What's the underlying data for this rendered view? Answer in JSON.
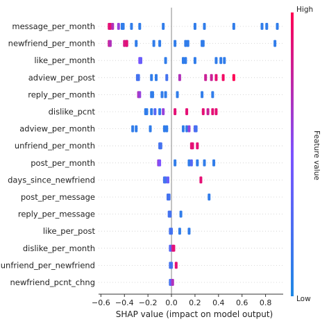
{
  "chart_data": {
    "type": "scatter",
    "title": "",
    "xlabel": "SHAP value (impact on model output)",
    "ylabel": "",
    "xlim": [
      -0.62,
      0.95
    ],
    "xticks": [
      -0.6,
      -0.4,
      -0.2,
      0.0,
      0.2,
      0.4,
      0.6,
      0.8
    ],
    "xtick_labels": [
      "−0.6",
      "−0.4",
      "−0.2",
      "0.0",
      "0.2",
      "0.4",
      "0.6",
      "0.8"
    ],
    "colorbar": {
      "label": "Feature value",
      "high_label": "High",
      "low_label": "Low",
      "low_color": "#1e88e5",
      "high_color": "#ff0052"
    },
    "features": [
      {
        "name": "message_per_month",
        "points": [
          [
            -0.53,
            0.9
          ],
          [
            -0.52,
            0.9
          ],
          [
            -0.5,
            0.7
          ],
          [
            -0.45,
            0.6
          ],
          [
            -0.42,
            0.1
          ],
          [
            -0.41,
            0.1
          ],
          [
            -0.34,
            0.1
          ],
          [
            -0.27,
            0.1
          ],
          [
            -0.07,
            0.1
          ],
          [
            0.2,
            0.1
          ],
          [
            0.28,
            0.1
          ],
          [
            0.53,
            0.1
          ],
          [
            0.77,
            0.1
          ],
          [
            0.81,
            0.1
          ],
          [
            0.9,
            0.1
          ]
        ]
      },
      {
        "name": "newfriend_per_month",
        "points": [
          [
            -0.53,
            0.8
          ],
          [
            -0.52,
            0.7
          ],
          [
            -0.38,
            0.1
          ],
          [
            -0.4,
            0.85
          ],
          [
            -0.38,
            0.9
          ],
          [
            -0.3,
            0.1
          ],
          [
            -0.15,
            0.1
          ],
          [
            -0.1,
            0.1
          ],
          [
            0.03,
            0.1
          ],
          [
            0.12,
            0.1
          ],
          [
            0.14,
            0.1
          ],
          [
            0.26,
            0.1
          ],
          [
            0.27,
            0.1
          ],
          [
            0.88,
            0.1
          ]
        ]
      },
      {
        "name": "like_per_month",
        "points": [
          [
            -0.27,
            0.5
          ],
          [
            -0.26,
            0.4
          ],
          [
            -0.05,
            0.1
          ],
          [
            0.1,
            0.1
          ],
          [
            0.12,
            0.1
          ],
          [
            0.2,
            0.1
          ],
          [
            0.38,
            0.1
          ],
          [
            0.42,
            0.1
          ],
          [
            0.45,
            0.1
          ]
        ]
      },
      {
        "name": "adview_per_post",
        "points": [
          [
            -0.29,
            0.2
          ],
          [
            -0.28,
            0.2
          ],
          [
            -0.17,
            0.1
          ],
          [
            -0.13,
            0.1
          ],
          [
            -0.04,
            0.2
          ],
          [
            0.07,
            0.7
          ],
          [
            0.29,
            0.8
          ],
          [
            0.34,
            0.8
          ],
          [
            0.38,
            0.9
          ],
          [
            0.44,
            0.95
          ],
          [
            0.53,
            1.0
          ]
        ]
      },
      {
        "name": "reply_per_month",
        "points": [
          [
            -0.28,
            0.7
          ],
          [
            -0.27,
            0.6
          ],
          [
            -0.17,
            0.1
          ],
          [
            -0.16,
            0.1
          ],
          [
            -0.08,
            0.1
          ],
          [
            -0.05,
            0.1
          ],
          [
            0.05,
            0.1
          ],
          [
            0.26,
            0.1
          ],
          [
            0.35,
            0.1
          ]
        ]
      },
      {
        "name": "dislike_pcnt",
        "points": [
          [
            -0.22,
            0.1
          ],
          [
            -0.21,
            0.1
          ],
          [
            -0.17,
            0.1
          ],
          [
            -0.14,
            0.3
          ],
          [
            -0.1,
            0.1
          ],
          [
            -0.07,
            0.6
          ],
          [
            0.03,
            0.9
          ],
          [
            0.13,
            0.9
          ],
          [
            0.27,
            0.9
          ],
          [
            0.31,
            0.8
          ],
          [
            0.35,
            0.9
          ],
          [
            0.38,
            0.9
          ]
        ]
      },
      {
        "name": "adview_per_month",
        "points": [
          [
            -0.33,
            0.1
          ],
          [
            -0.3,
            0.1
          ],
          [
            -0.18,
            0.1
          ],
          [
            -0.06,
            0.1
          ],
          [
            -0.04,
            0.1
          ],
          [
            0.1,
            0.1
          ],
          [
            0.13,
            0.1
          ],
          [
            0.15,
            0.6
          ],
          [
            0.2,
            0.3
          ],
          [
            0.21,
            0.2
          ]
        ]
      },
      {
        "name": "unfriend_per_month",
        "points": [
          [
            -0.1,
            0.2
          ],
          [
            -0.09,
            0.2
          ],
          [
            0.17,
            0.9
          ],
          [
            0.18,
            0.9
          ],
          [
            0.22,
            0.9
          ]
        ]
      },
      {
        "name": "post_per_month",
        "points": [
          [
            -0.11,
            0.6
          ],
          [
            -0.1,
            0.5
          ],
          [
            0.03,
            0.1
          ],
          [
            0.15,
            0.1
          ],
          [
            0.17,
            0.3
          ],
          [
            0.22,
            0.1
          ],
          [
            0.28,
            0.1
          ],
          [
            0.36,
            0.1
          ]
        ]
      },
      {
        "name": "days_since_newfriend",
        "points": [
          [
            -0.06,
            0.2
          ],
          [
            -0.05,
            0.2
          ],
          [
            -0.03,
            0.4
          ],
          [
            0.25,
            0.9
          ]
        ]
      },
      {
        "name": "post_per_message",
        "points": [
          [
            -0.03,
            0.2
          ],
          [
            -0.02,
            0.2
          ],
          [
            0.32,
            0.1
          ]
        ]
      },
      {
        "name": "reply_per_message",
        "points": [
          [
            -0.02,
            0.2
          ],
          [
            -0.01,
            0.2
          ],
          [
            0.08,
            0.1
          ]
        ]
      },
      {
        "name": "like_per_post",
        "points": [
          [
            -0.01,
            0.2
          ],
          [
            0.0,
            0.2
          ],
          [
            0.07,
            0.1
          ],
          [
            0.15,
            0.1
          ]
        ]
      },
      {
        "name": "dislike_per_month",
        "points": [
          [
            -0.01,
            0.3
          ],
          [
            0.01,
            0.8
          ],
          [
            0.02,
            0.9
          ]
        ]
      },
      {
        "name": "unfriend_per_newfriend",
        "points": [
          [
            -0.01,
            0.2
          ],
          [
            0.0,
            0.2
          ],
          [
            0.04,
            0.9
          ]
        ]
      },
      {
        "name": "newfriend_pcnt_chng",
        "points": [
          [
            -0.01,
            0.2
          ],
          [
            0.0,
            0.4
          ],
          [
            0.01,
            0.7
          ]
        ]
      }
    ]
  }
}
